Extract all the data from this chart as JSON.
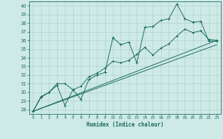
{
  "xlabel": "Humidex (Indice chaleur)",
  "xlim": [
    -0.5,
    23.5
  ],
  "ylim": [
    27.5,
    40.5
  ],
  "yticks": [
    28,
    29,
    30,
    31,
    32,
    33,
    34,
    35,
    36,
    37,
    38,
    39,
    40
  ],
  "xticks": [
    0,
    1,
    2,
    3,
    4,
    5,
    6,
    7,
    8,
    9,
    10,
    11,
    12,
    13,
    14,
    15,
    16,
    17,
    18,
    19,
    20,
    21,
    22,
    23
  ],
  "background_color": "#ceeae6",
  "grid_color": "#b0d0cc",
  "line_color": "#1a6b5a",
  "line1_y": [
    27.8,
    29.5,
    30.0,
    30.8,
    28.5,
    30.3,
    29.2,
    31.5,
    32.0,
    32.3,
    36.3,
    35.5,
    35.8,
    33.4,
    37.5,
    37.6,
    38.3,
    38.5,
    40.2,
    38.5,
    38.1,
    38.2,
    35.9,
    35.9
  ],
  "line2_y": [
    27.8,
    29.4,
    30.0,
    31.0,
    31.0,
    30.3,
    30.7,
    31.8,
    32.2,
    32.8,
    33.6,
    33.4,
    33.7,
    34.4,
    35.2,
    34.3,
    35.1,
    35.6,
    36.5,
    37.3,
    36.9,
    37.1,
    36.1,
    36.0
  ],
  "line3_y": [
    27.8,
    36.0
  ],
  "line4_y": [
    27.8,
    35.5
  ]
}
